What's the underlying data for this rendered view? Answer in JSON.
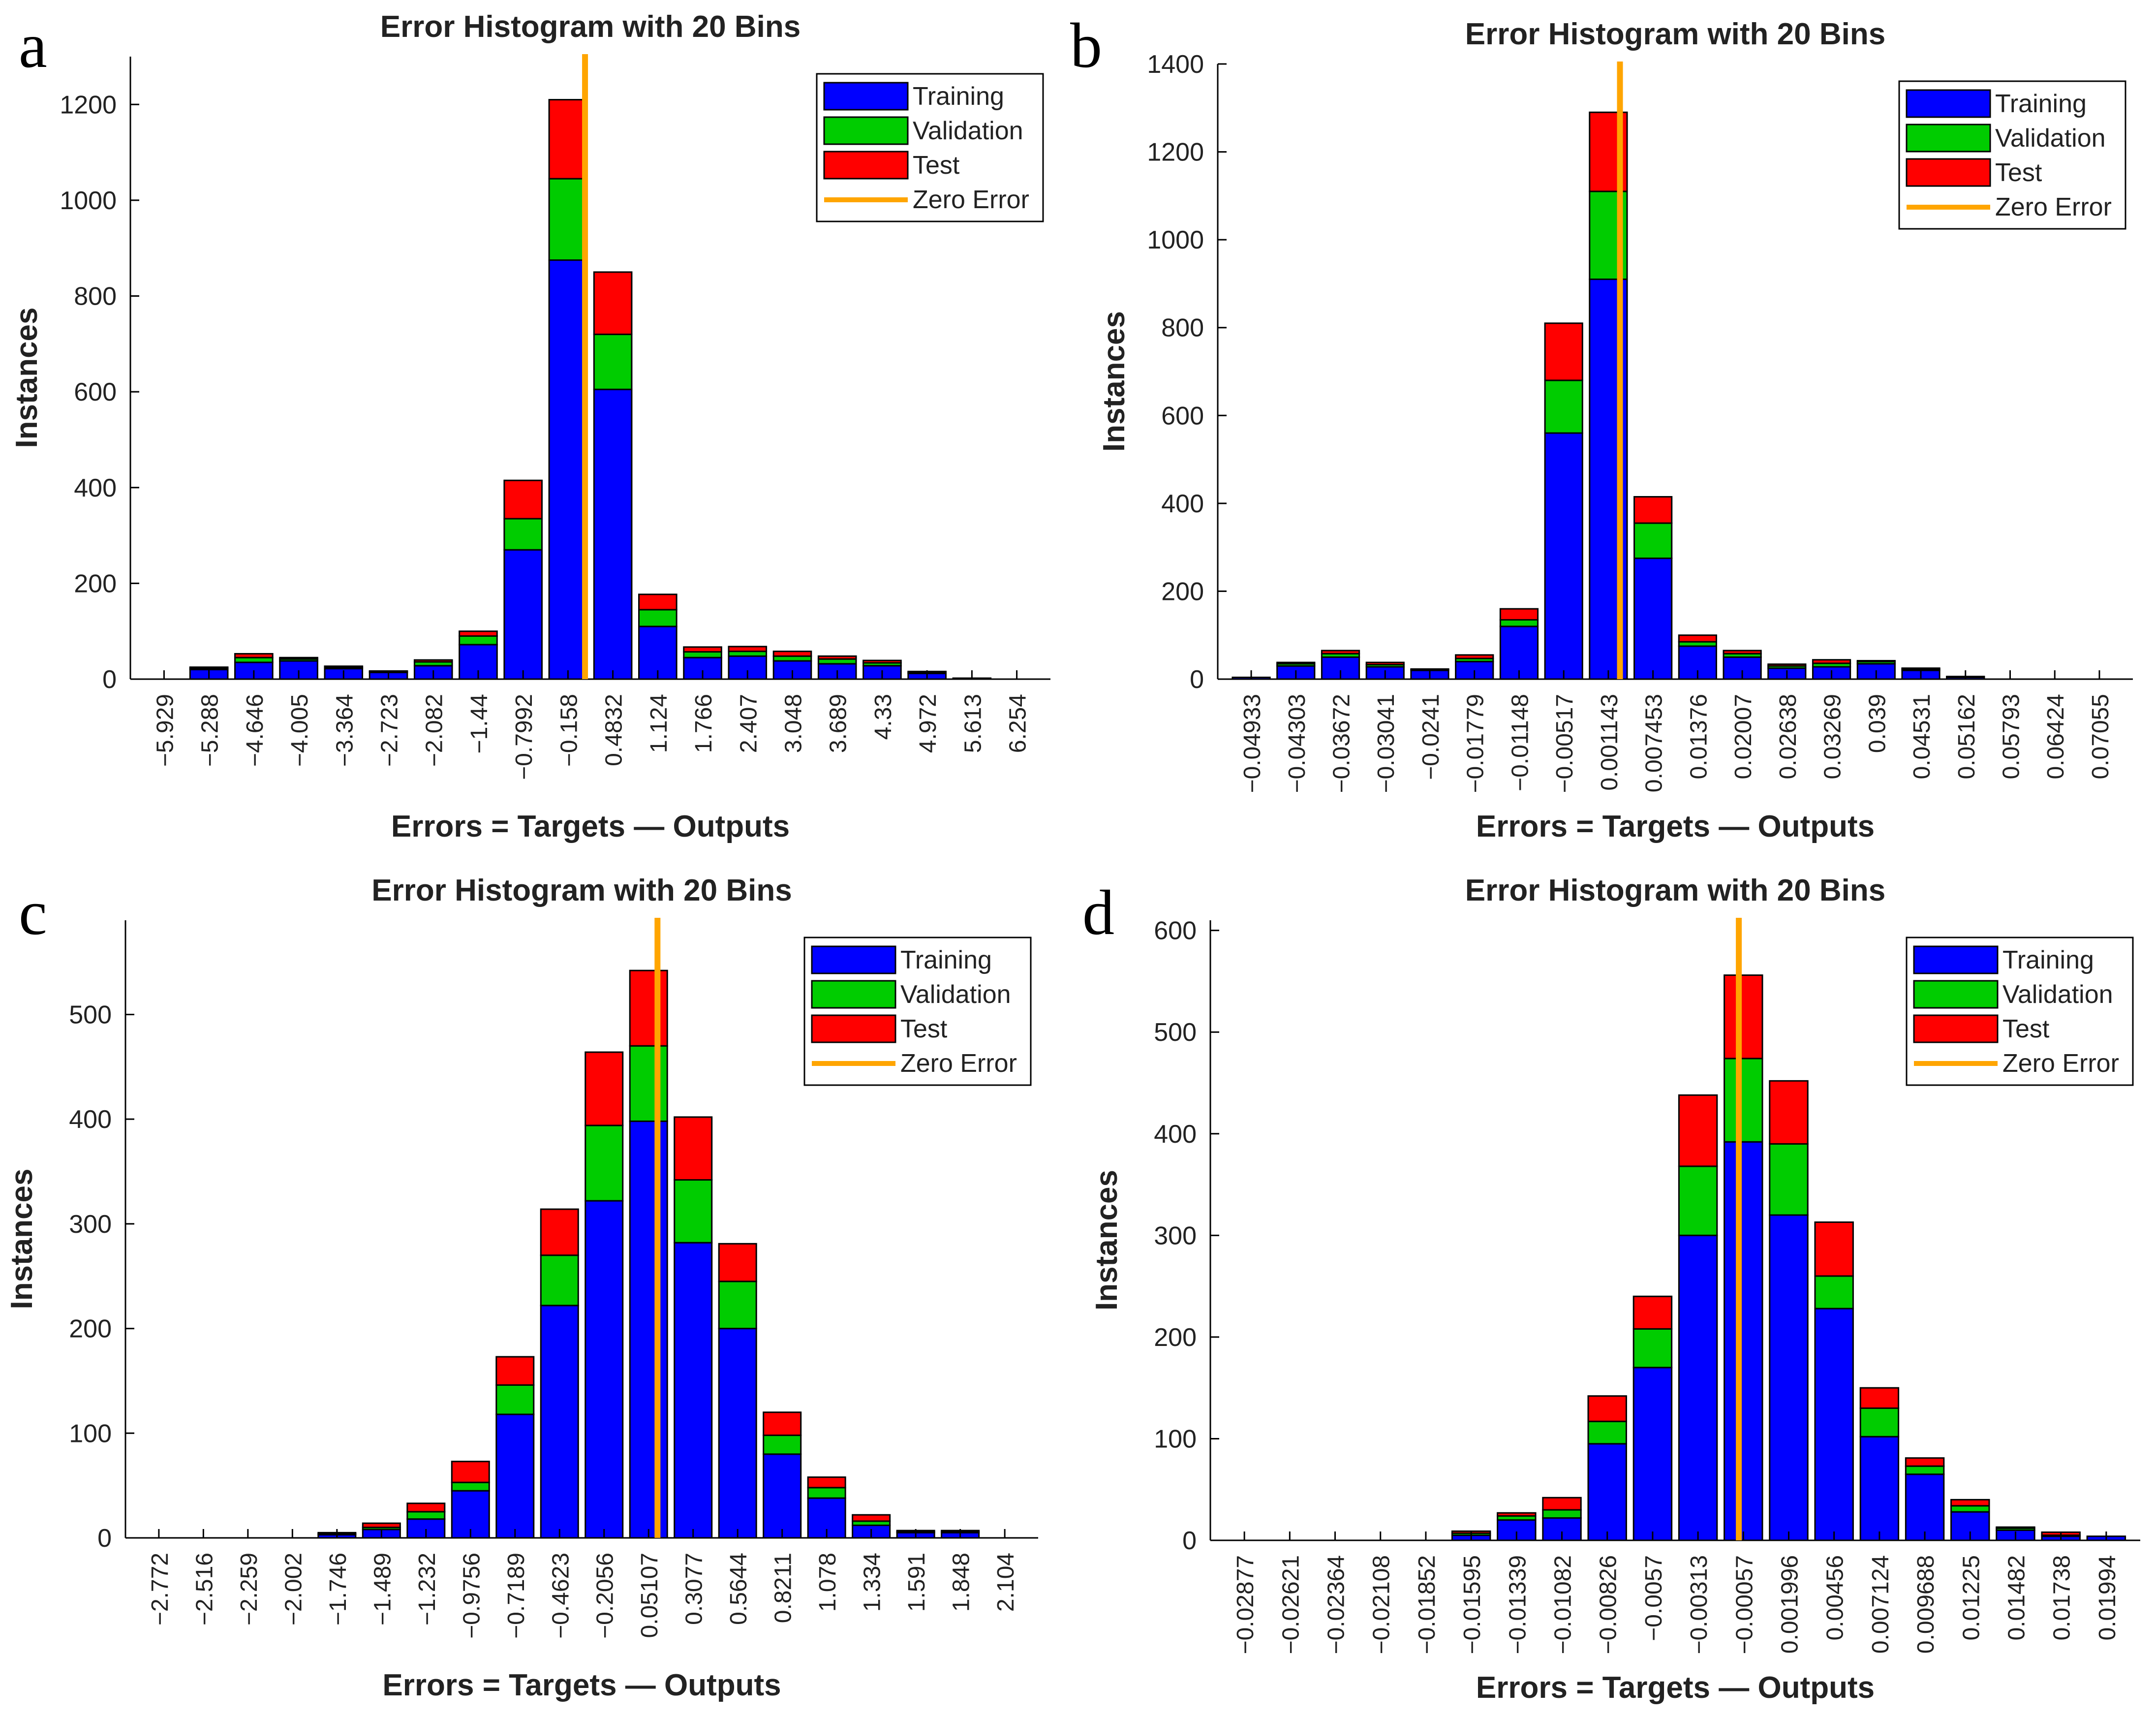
{
  "colors": {
    "training": "#0000ff",
    "validation": "#00cc00",
    "test": "#ff0000",
    "zero_error": "#ffa500",
    "outline": "#000000"
  },
  "panel_labels": [
    "a",
    "b",
    "c",
    "d"
  ],
  "chart_data": [
    {
      "type": "bar",
      "stacked": true,
      "panel": "a",
      "title": "Error Histogram with 20 Bins",
      "xlabel": "Errors = Targets — Outputs",
      "ylabel": "Instances",
      "ylim": [
        0,
        1300
      ],
      "yticks": [
        0,
        200,
        400,
        600,
        800,
        1000,
        1200
      ],
      "categories": [
        "−5.929",
        "−5.288",
        "−4.646",
        "−4.005",
        "−3.364",
        "−2.723",
        "−2.082",
        "−1.44",
        "−0.7992",
        "−0.158",
        "0.4832",
        "1.124",
        "1.766",
        "2.407",
        "3.048",
        "3.689",
        "4.33",
        "4.972",
        "5.613",
        "6.254"
      ],
      "series": [
        {
          "name": "Training",
          "values": [
            0,
            20,
            35,
            38,
            22,
            14,
            28,
            72,
            270,
            875,
            605,
            110,
            45,
            48,
            38,
            32,
            28,
            12,
            2,
            0
          ]
        },
        {
          "name": "Validation",
          "values": [
            0,
            3,
            10,
            4,
            3,
            2,
            8,
            18,
            65,
            170,
            115,
            35,
            12,
            10,
            10,
            10,
            6,
            2,
            0,
            0
          ]
        },
        {
          "name": "Test",
          "values": [
            0,
            2,
            8,
            3,
            2,
            1,
            4,
            10,
            80,
            165,
            130,
            32,
            10,
            10,
            10,
            6,
            5,
            2,
            0,
            0
          ]
        }
      ],
      "zero_error_bin": 9.38,
      "legend": [
        "Training",
        "Validation",
        "Test",
        "Zero Error"
      ],
      "legend_position": "top-right"
    },
    {
      "type": "bar",
      "stacked": true,
      "panel": "b",
      "title": "Error Histogram with 20 Bins",
      "xlabel": "Errors = Targets — Outputs",
      "ylabel": "Instances",
      "ylim": [
        0,
        1400
      ],
      "yticks": [
        0,
        200,
        400,
        600,
        800,
        1000,
        1200,
        1400
      ],
      "categories": [
        "−0.04933",
        "−0.04303",
        "−0.03672",
        "−0.03041",
        "−0.0241",
        "−0.01779",
        "−0.01148",
        "−0.00517",
        "0.001143",
        "0.007453",
        "0.01376",
        "0.02007",
        "0.02638",
        "0.03269",
        "0.039",
        "0.04531",
        "0.05162",
        "0.05793",
        "0.06424",
        "0.07055"
      ],
      "series": [
        {
          "name": "Training",
          "values": [
            4,
            30,
            50,
            28,
            20,
            40,
            120,
            560,
            910,
            275,
            75,
            50,
            25,
            28,
            35,
            20,
            4,
            0,
            0,
            0
          ]
        },
        {
          "name": "Validation",
          "values": [
            0,
            5,
            8,
            5,
            2,
            7,
            15,
            120,
            200,
            80,
            10,
            8,
            5,
            8,
            5,
            3,
            1,
            0,
            0,
            0
          ]
        },
        {
          "name": "Test",
          "values": [
            0,
            3,
            7,
            5,
            1,
            8,
            25,
            130,
            180,
            60,
            15,
            7,
            4,
            8,
            2,
            2,
            1,
            0,
            0,
            0
          ]
        }
      ],
      "zero_error_bin": 8.26,
      "legend": [
        "Training",
        "Validation",
        "Test",
        "Zero Error"
      ],
      "legend_position": "top-right"
    },
    {
      "type": "bar",
      "stacked": true,
      "panel": "c",
      "title": "Error Histogram with 20 Bins",
      "xlabel": "Errors = Targets — Outputs",
      "ylabel": "Instances",
      "ylim": [
        0,
        590
      ],
      "yticks": [
        0,
        100,
        200,
        300,
        400,
        500
      ],
      "categories": [
        "−2.772",
        "−2.516",
        "−2.259",
        "−2.002",
        "−1.746",
        "−1.489",
        "−1.232",
        "−0.9756",
        "−0.7189",
        "−0.4623",
        "−0.2056",
        "0.05107",
        "0.3077",
        "0.5644",
        "0.8211",
        "1.078",
        "1.334",
        "1.591",
        "1.848",
        "2.104"
      ],
      "series": [
        {
          "name": "Training",
          "values": [
            0,
            0,
            0,
            0,
            3,
            8,
            18,
            45,
            118,
            222,
            322,
            398,
            282,
            200,
            80,
            38,
            12,
            5,
            5,
            0
          ]
        },
        {
          "name": "Validation",
          "values": [
            0,
            0,
            0,
            0,
            1,
            2,
            7,
            8,
            28,
            48,
            72,
            72,
            60,
            45,
            18,
            10,
            4,
            1,
            1,
            0
          ]
        },
        {
          "name": "Test",
          "values": [
            0,
            0,
            0,
            0,
            1,
            4,
            8,
            20,
            27,
            44,
            70,
            72,
            60,
            36,
            22,
            10,
            6,
            1,
            1,
            0
          ]
        }
      ],
      "zero_error_bin": 11.2,
      "legend": [
        "Training",
        "Validation",
        "Test",
        "Zero Error"
      ],
      "legend_position": "top-right"
    },
    {
      "type": "bar",
      "stacked": true,
      "panel": "d",
      "title": "Error Histogram with 20 Bins",
      "xlabel": "Errors = Targets — Outputs",
      "ylabel": "Instances",
      "ylim": [
        0,
        610
      ],
      "yticks": [
        0,
        100,
        200,
        300,
        400,
        500,
        600
      ],
      "categories": [
        "−0.02877",
        "−0.02621",
        "−0.02364",
        "−0.02108",
        "−0.01852",
        "−0.01595",
        "−0.01339",
        "−0.01082",
        "−0.00826",
        "−0.0057",
        "−0.00313",
        "−0.00057",
        "0.001996",
        "0.00456",
        "0.007124",
        "0.009688",
        "0.01225",
        "0.01482",
        "0.01738",
        "0.01994"
      ],
      "series": [
        {
          "name": "Training",
          "values": [
            0,
            0,
            0,
            0,
            0,
            5,
            20,
            22,
            95,
            170,
            300,
            392,
            320,
            228,
            102,
            65,
            28,
            10,
            4,
            4
          ]
        },
        {
          "name": "Validation",
          "values": [
            0,
            0,
            0,
            0,
            0,
            2,
            4,
            8,
            22,
            38,
            68,
            82,
            70,
            32,
            28,
            8,
            6,
            2,
            1,
            0
          ]
        },
        {
          "name": "Test",
          "values": [
            0,
            0,
            0,
            0,
            0,
            2,
            3,
            12,
            25,
            32,
            70,
            82,
            62,
            53,
            20,
            8,
            6,
            1,
            3,
            0
          ]
        }
      ],
      "zero_error_bin": 10.9,
      "legend": [
        "Training",
        "Validation",
        "Test",
        "Zero Error"
      ],
      "legend_position": "top-right"
    }
  ]
}
